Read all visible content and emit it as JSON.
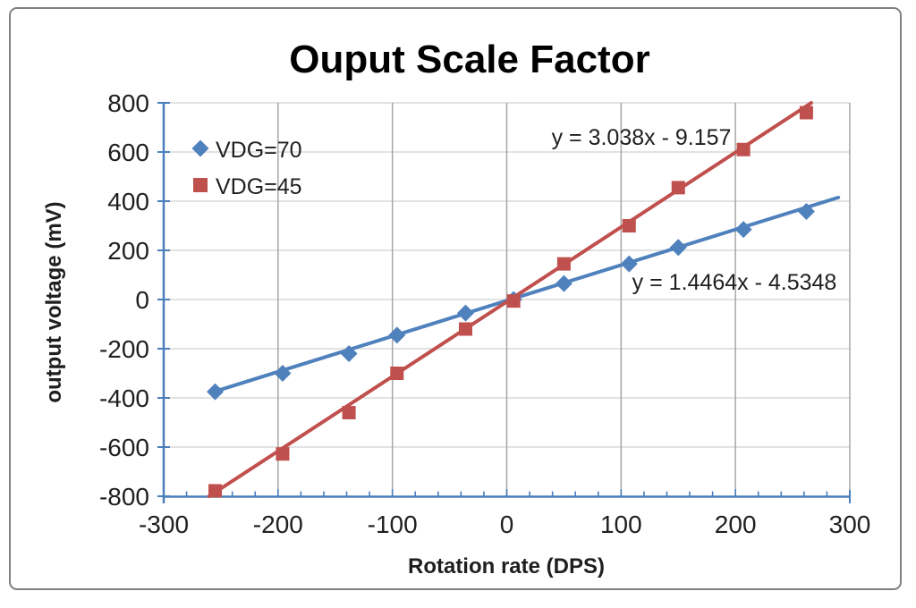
{
  "frame": {
    "border_color": "#808080",
    "background_color": "#FFFFFF"
  },
  "chart_data": {
    "type": "scatter",
    "title": "Ouput Scale Factor",
    "xlabel": "Rotation rate (DPS)",
    "ylabel": "output voltage (mV)",
    "xlim": [
      -300,
      300
    ],
    "ylim": [
      -800,
      800
    ],
    "x_ticks": [
      -300,
      -200,
      -100,
      0,
      100,
      200,
      300
    ],
    "y_ticks": [
      800,
      600,
      400,
      200,
      0,
      -200,
      -400,
      -600,
      -800
    ],
    "x_minor_tick_step": 20,
    "grid": {
      "horizontal": true,
      "vertical": true,
      "horizontal_color": "#D9D9D9",
      "vertical_color": "#A6A6A6"
    },
    "axis_color": "#4A7EBB",
    "legend_position": "top-left-inside",
    "series": [
      {
        "name": "VDG=70",
        "marker": "diamond",
        "color": "#4F81BD",
        "x": [
          -255,
          -196,
          -138,
          -96,
          -36,
          6,
          50,
          107,
          150,
          207,
          262
        ],
        "y": [
          -375,
          -300,
          -220,
          -145,
          -55,
          0,
          65,
          145,
          212,
          285,
          358
        ],
        "trendline": {
          "slope": 1.4464,
          "intercept": -4.5348,
          "x_start": -255,
          "x_end": 290,
          "equation_label": "y = 1.4464x - 4.5348"
        }
      },
      {
        "name": "VDG=45",
        "marker": "square",
        "color": "#C0504D",
        "x": [
          -255,
          -196,
          -138,
          -96,
          -36,
          6,
          50,
          107,
          150,
          207,
          262
        ],
        "y": [
          -778,
          -628,
          -460,
          -300,
          -120,
          -6,
          145,
          300,
          455,
          610,
          760
        ],
        "trendline": {
          "slope": 3.038,
          "intercept": -9.157,
          "x_start": -260.3,
          "x_end": 266.3,
          "equation_label": "y = 3.038x - 9.157"
        }
      }
    ]
  }
}
